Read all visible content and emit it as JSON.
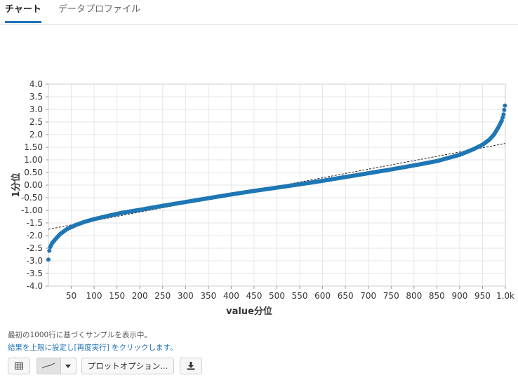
{
  "tabs": [
    {
      "label": "チャート",
      "active": true
    },
    {
      "label": "データプロファイル",
      "active": false
    }
  ],
  "notes": {
    "sample_text": "最初の1000行に基づくサンプルを表示中。",
    "rerun_text": "結果を上限に設定し[再度実行] をクリックします。"
  },
  "toolbar": {
    "table_icon": "table-icon",
    "chart_type_icon": "chart-thumbnail-icon",
    "dropdown_icon": "caret-down-icon",
    "plot_options_label": "プロットオプション...",
    "download_icon": "download-icon"
  },
  "colors": {
    "accent": "#1f73b7",
    "points": "#1f77b4",
    "reference_line": "#222222"
  },
  "chart_data": {
    "type": "scatter",
    "xlabel": "value分位",
    "ylabel": "1分位",
    "xlim": [
      0,
      1000
    ],
    "ylim": [
      -4.0,
      4.0
    ],
    "x_ticks": [
      "50",
      "100",
      "150",
      "200",
      "250",
      "300",
      "350",
      "400",
      "450",
      "500",
      "550",
      "600",
      "650",
      "700",
      "750",
      "800",
      "850",
      "900",
      "950",
      "1.0k"
    ],
    "y_ticks": [
      "4.0",
      "3.5",
      "3.0",
      "2.5",
      "2.0",
      "1.50",
      "1.00",
      "0.50",
      "0.00",
      "-0.50",
      "-1.00",
      "-1.5",
      "-2.0",
      "-2.5",
      "-3.0",
      "-3.5",
      "-4.0"
    ],
    "reference_line": {
      "x": [
        0,
        1000
      ],
      "y": [
        -1.75,
        1.65
      ]
    },
    "points": [
      [
        0,
        -2.95
      ],
      [
        2,
        -2.6
      ],
      [
        4,
        -2.45
      ],
      [
        8,
        -2.3
      ],
      [
        15,
        -2.15
      ],
      [
        25,
        -1.95
      ],
      [
        40,
        -1.75
      ],
      [
        60,
        -1.58
      ],
      [
        80,
        -1.45
      ],
      [
        100,
        -1.35
      ],
      [
        130,
        -1.22
      ],
      [
        160,
        -1.1
      ],
      [
        200,
        -0.98
      ],
      [
        250,
        -0.82
      ],
      [
        300,
        -0.67
      ],
      [
        350,
        -0.52
      ],
      [
        400,
        -0.37
      ],
      [
        450,
        -0.23
      ],
      [
        500,
        -0.1
      ],
      [
        550,
        0.03
      ],
      [
        600,
        0.17
      ],
      [
        650,
        0.32
      ],
      [
        700,
        0.47
      ],
      [
        750,
        0.62
      ],
      [
        800,
        0.78
      ],
      [
        850,
        0.95
      ],
      [
        900,
        1.2
      ],
      [
        930,
        1.42
      ],
      [
        950,
        1.6
      ],
      [
        965,
        1.8
      ],
      [
        975,
        2.0
      ],
      [
        985,
        2.3
      ],
      [
        992,
        2.55
      ],
      [
        996,
        2.8
      ],
      [
        999,
        3.15
      ]
    ]
  }
}
